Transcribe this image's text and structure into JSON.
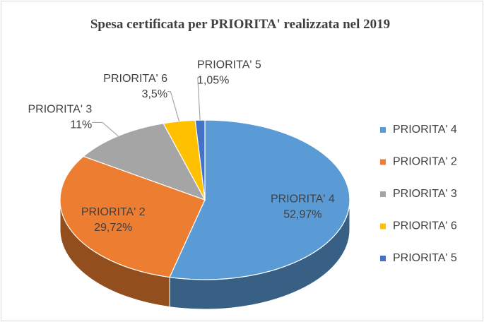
{
  "chart_data": {
    "type": "pie",
    "title": "Spesa certificata per PRIORITA' realizzata nel 2019",
    "categories": [
      "PRIORITA' 4",
      "PRIORITA' 2",
      "PRIORITA' 3",
      "PRIORITA' 6",
      "PRIORITA' 5"
    ],
    "values": [
      52.97,
      29.72,
      11,
      3.5,
      1.05
    ],
    "value_labels": [
      "52,97%",
      "29,72%",
      "11%",
      "3,5%",
      "1,05%"
    ],
    "colors": [
      "#5b9bd5",
      "#ed7d31",
      "#a5a5a5",
      "#ffc000",
      "#4472c4"
    ],
    "legend": "right"
  }
}
